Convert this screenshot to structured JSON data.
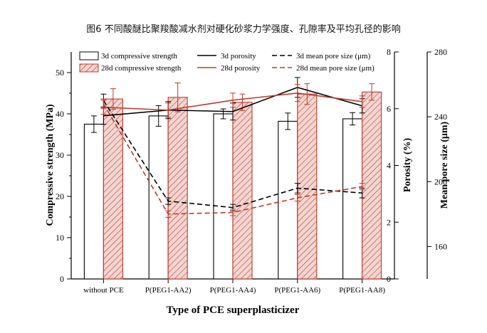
{
  "figure_title": "图6 不同酸醚比聚羧酸减水剂对硬化砂浆力学强度、孔隙率及平均孔径的影响",
  "colors": {
    "series_3d": "#000000",
    "series_28d": "#c0392b",
    "bar_28d_fill": "#f3d6d2"
  },
  "chart_data": {
    "type": "bar",
    "title": "",
    "xlabel": "Type of PCE superplasticizer",
    "categories": [
      "without PCE",
      "P(PEG1-AA2)",
      "P(PEG1-AA4)",
      "P(PEG1-AA6)",
      "P(PEG1-AA8)"
    ],
    "axes": {
      "left": {
        "label": "Compressive strength (MPa)",
        "range": [
          0,
          55
        ],
        "ticks": [
          "0",
          "10",
          "20",
          "30",
          "40",
          "50"
        ]
      },
      "right1": {
        "label": "Porosity (%)",
        "range": [
          0,
          8
        ],
        "ticks": [
          "0",
          "2",
          "4",
          "6",
          "8"
        ]
      },
      "right2": {
        "label": "Mean pore size (μm)",
        "range": [
          140,
          280
        ],
        "ticks": [
          "160",
          "200",
          "240",
          "280"
        ]
      }
    },
    "grid": false,
    "legend_position": "top-left",
    "series": [
      {
        "name": "3d compressive strength",
        "kind": "bar",
        "axis": "left",
        "style": "open",
        "values": [
          37.5,
          39.5,
          40.0,
          38.2,
          38.8
        ],
        "errors": [
          2.0,
          2.5,
          1.2,
          2.0,
          1.5
        ]
      },
      {
        "name": "28d compressive strength",
        "kind": "bar",
        "axis": "left",
        "style": "hatched",
        "values": [
          43.6,
          44.0,
          42.8,
          44.8,
          45.3
        ],
        "errors": [
          2.5,
          3.5,
          2.0,
          2.5,
          2.0
        ]
      },
      {
        "name": "3d porosity",
        "kind": "line",
        "axis": "right1",
        "style": "solid",
        "color_key": "series_3d",
        "values": [
          5.75,
          5.95,
          5.9,
          6.75,
          6.1
        ],
        "errors": [
          0.3,
          0.3,
          0.3,
          0.35,
          0.25
        ]
      },
      {
        "name": "28d porosity",
        "kind": "line",
        "axis": "right1",
        "style": "solid",
        "color_key": "series_28d",
        "values": [
          6.05,
          5.95,
          6.3,
          6.55,
          6.25
        ],
        "errors": [
          0.25,
          0.25,
          0.25,
          0.3,
          0.2
        ]
      },
      {
        "name": "3d mean pore size (μm)",
        "kind": "line",
        "axis": "right2",
        "style": "dashed",
        "color_key": "series_3d",
        "values": [
          250,
          188,
          184,
          196,
          193
        ],
        "errors": [
          4,
          2,
          2,
          3,
          3
        ]
      },
      {
        "name": "28d mean pore size (μm)",
        "kind": "line",
        "axis": "right2",
        "style": "dashed",
        "color_key": "series_28d",
        "values": [
          248,
          180,
          181,
          190,
          197
        ],
        "errors": [
          3,
          2,
          2,
          2,
          2
        ]
      }
    ]
  }
}
